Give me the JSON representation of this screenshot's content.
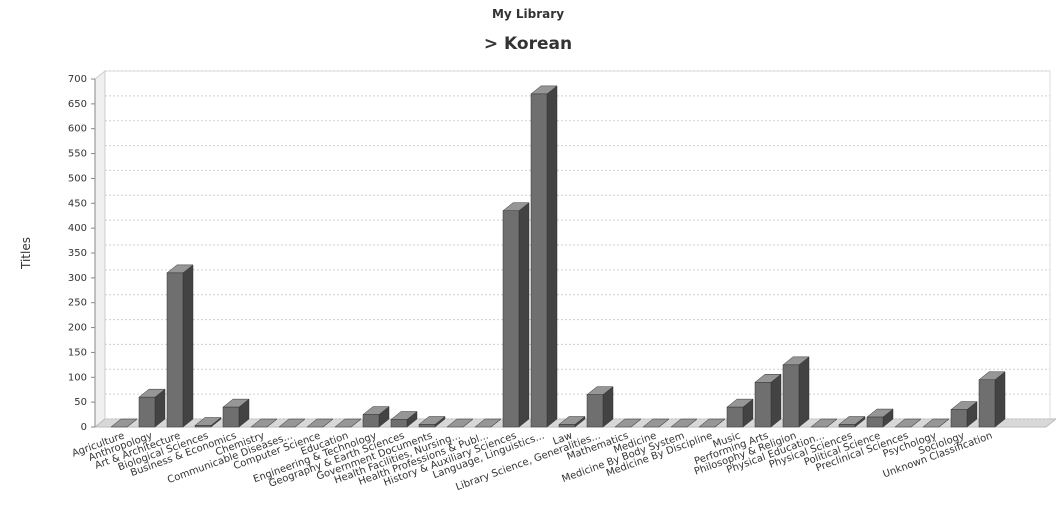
{
  "chart_data": {
    "type": "bar3d",
    "title": "My Library",
    "subtitle": "> Korean",
    "y_label": "Titles",
    "categories": [
      "Agriculture",
      "Anthropology",
      "Art & Architecture",
      "Biological Sciences",
      "Business & Economics",
      "Chemistry",
      "Communicable Diseases...",
      "Computer Science",
      "Education",
      "Engineering & Technology",
      "Geography & Earth Sciences",
      "Government Documents",
      "Health Facilities, Nursing...",
      "Health Professions & Publ...",
      "History & Auxiliary Sciences",
      "Language, Linguistics...",
      "Law",
      "Library Science, Generalities...",
      "Mathematics",
      "Medicine",
      "Medicine By Body System",
      "Medicine By Discipline",
      "Music",
      "Performing Arts",
      "Philosophy & Religion",
      "Physical Education...",
      "Physical Sciences",
      "Political Science",
      "Preclinical Sciences",
      "Psychology",
      "Sociology",
      "Unknown Classification"
    ],
    "values": [
      0,
      60,
      310,
      3,
      40,
      0,
      0,
      0,
      0,
      25,
      15,
      5,
      0,
      0,
      435,
      670,
      5,
      65,
      0,
      0,
      0,
      0,
      40,
      90,
      125,
      0,
      5,
      20,
      0,
      0,
      35,
      95
    ],
    "color": "#6f6f6f",
    "ylim": [
      0,
      700
    ],
    "yticks": [
      0,
      50,
      100,
      150,
      200,
      250,
      300,
      350,
      400,
      450,
      500,
      550,
      600,
      650,
      700
    ],
    "grid": true
  }
}
